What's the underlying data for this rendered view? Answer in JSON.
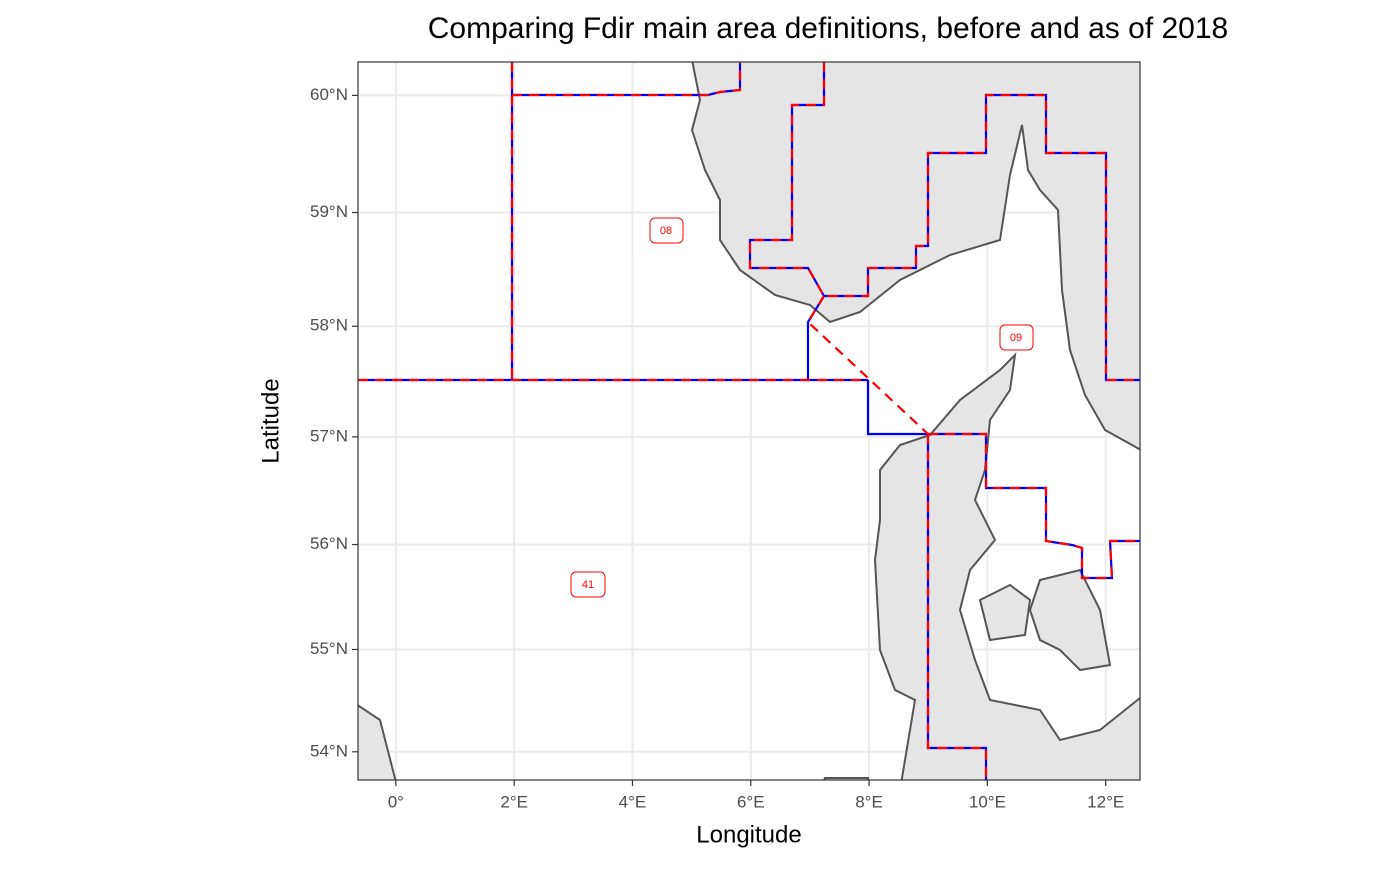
{
  "chart_data": {
    "type": "map",
    "projection": "mercator",
    "title": "Comparing Fdir main area definitions, before and as of 2018",
    "x_label": "Longitude",
    "y_label": "Latitude",
    "xlim": [
      -0.64,
      12.58
    ],
    "ylim": [
      53.72,
      60.28
    ],
    "xticks": [
      {
        "value": 0,
        "label": "0°"
      },
      {
        "value": 2,
        "label": "2°E"
      },
      {
        "value": 4,
        "label": "4°E"
      },
      {
        "value": 6,
        "label": "6°E"
      },
      {
        "value": 8,
        "label": "8°E"
      },
      {
        "value": 10,
        "label": "10°E"
      },
      {
        "value": 12,
        "label": "12°E"
      }
    ],
    "yticks": [
      {
        "value": 54,
        "label": "54°N"
      },
      {
        "value": 55,
        "label": "55°N"
      },
      {
        "value": 56,
        "label": "56°N"
      },
      {
        "value": 57,
        "label": "57°N"
      },
      {
        "value": 58,
        "label": "58°N"
      },
      {
        "value": 59,
        "label": "59°N"
      },
      {
        "value": 60,
        "label": "60°N"
      }
    ],
    "grid": true,
    "area_labels": [
      "08",
      "09",
      "41"
    ]
  }
}
